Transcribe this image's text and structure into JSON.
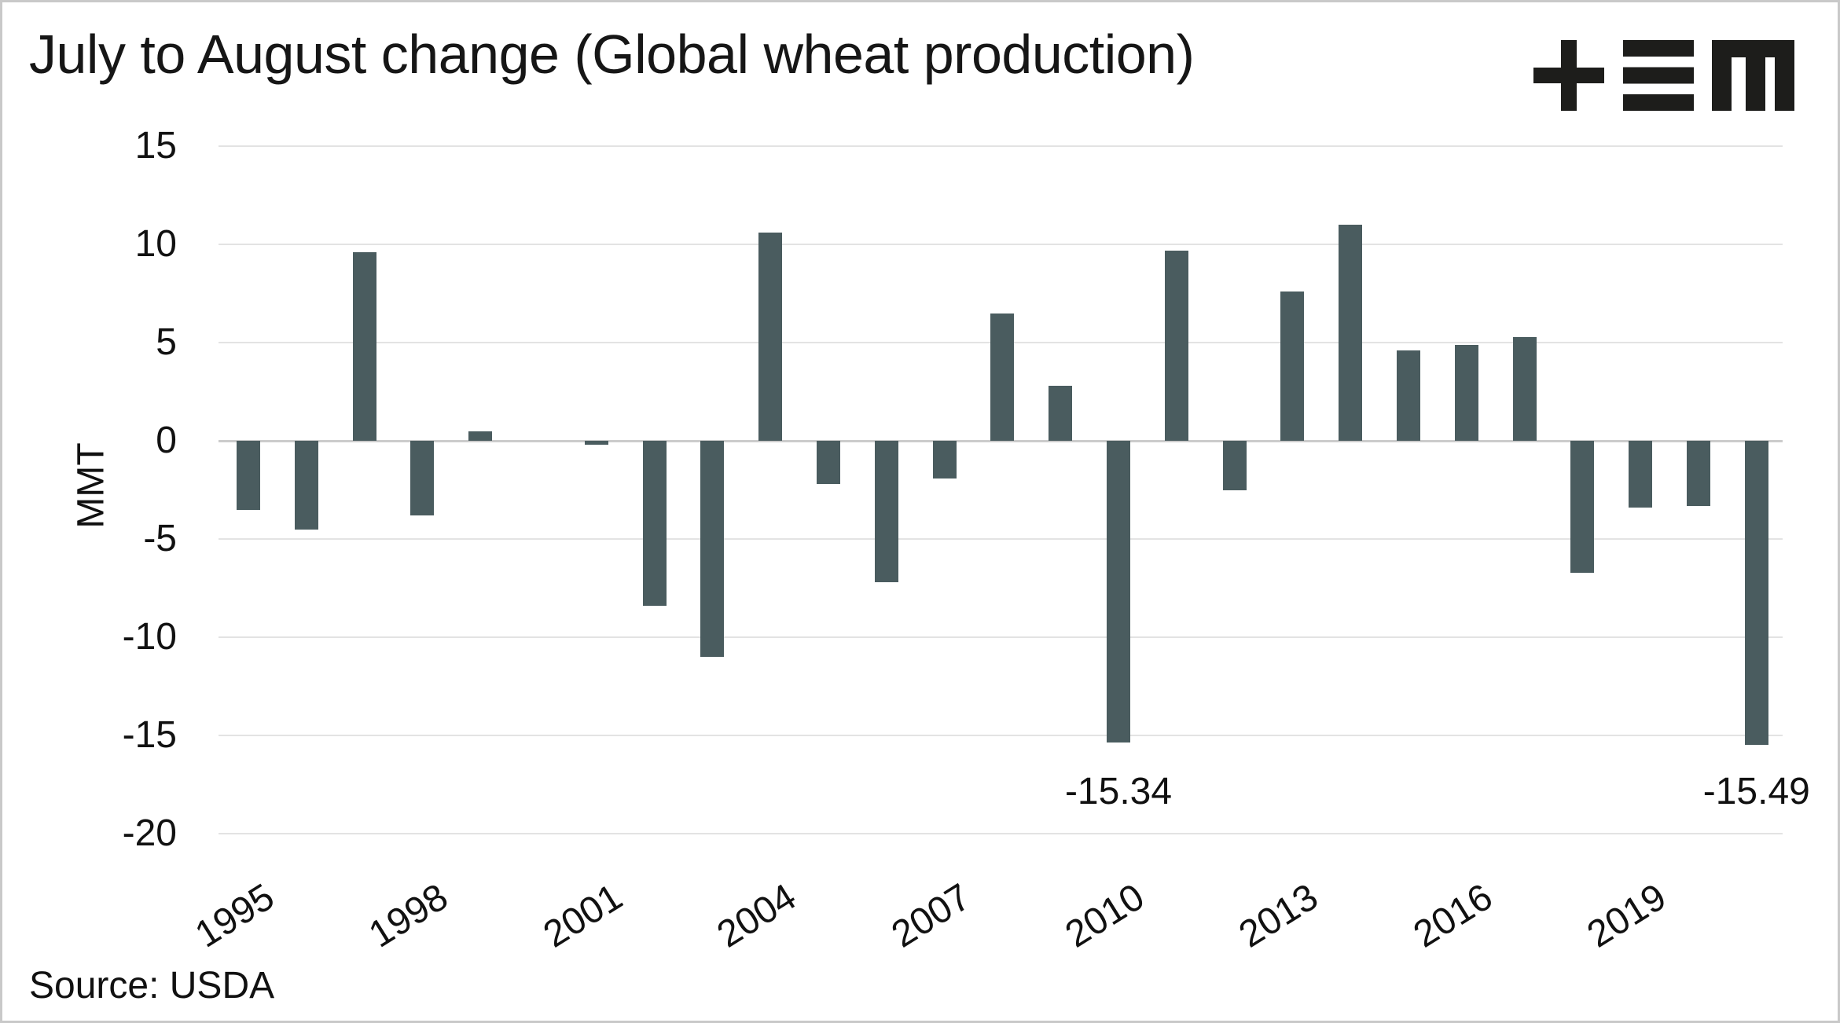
{
  "header": {
    "title": "July to August change (Global wheat production)"
  },
  "logo": {
    "name": "plus-three-bars-m-logo",
    "color": "#1d1d1b"
  },
  "axis": {
    "ylabel": "MMT"
  },
  "source": {
    "text": "Source: USDA"
  },
  "colors": {
    "bar": "#4a5c5f",
    "grid": "#e3e3e3",
    "zero_line": "#cccccc",
    "text": "#111111",
    "border": "#c9c9c9"
  },
  "chart_data": {
    "type": "bar",
    "title": "July to August change (Global wheat production)",
    "xlabel": "",
    "ylabel": "MMT",
    "ylim": [
      -20,
      15
    ],
    "ytick_step": 5,
    "yticks": [
      15,
      10,
      5,
      0,
      -5,
      -10,
      -15,
      -20
    ],
    "grid": true,
    "legend": "none",
    "categories": [
      1995,
      1996,
      1997,
      1998,
      1999,
      2000,
      2001,
      2002,
      2003,
      2004,
      2005,
      2006,
      2007,
      2008,
      2009,
      2010,
      2011,
      2012,
      2013,
      2014,
      2015,
      2016,
      2017,
      2018,
      2019,
      2020,
      2021
    ],
    "values": [
      -3.5,
      -4.5,
      9.6,
      -3.8,
      0.5,
      0,
      -0.2,
      -8.4,
      -11.0,
      10.6,
      -2.2,
      -7.2,
      -1.9,
      6.5,
      2.8,
      -15.34,
      9.7,
      -2.5,
      7.6,
      11.0,
      4.6,
      4.9,
      5.3,
      -6.7,
      -3.4,
      -3.3,
      -15.49
    ],
    "xtick_years": [
      1995,
      1998,
      2001,
      2004,
      2007,
      2010,
      2013,
      2016,
      2019
    ],
    "annotations": [
      {
        "year": 2010,
        "text": "-15.34"
      },
      {
        "year": 2021,
        "text": "-15.49"
      }
    ]
  }
}
